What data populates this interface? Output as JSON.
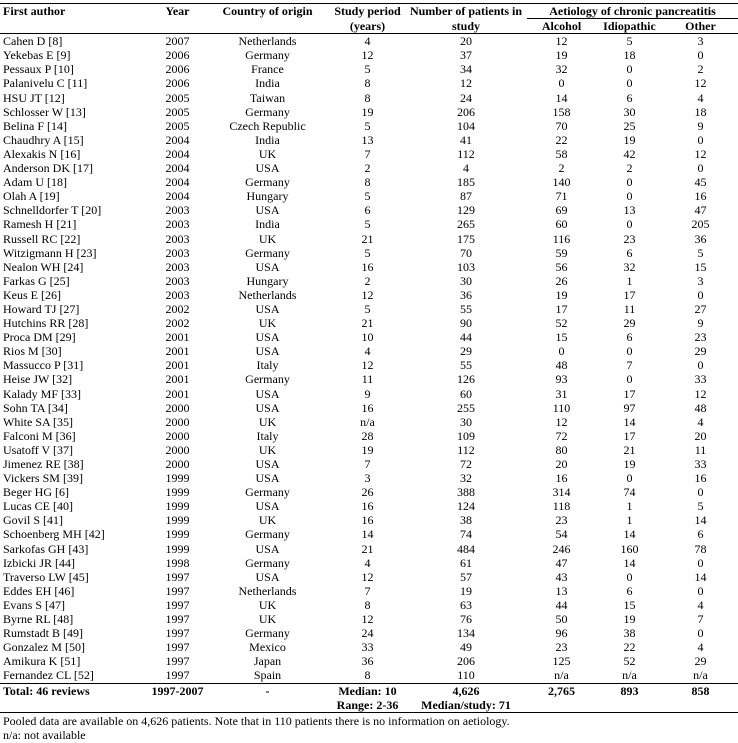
{
  "headers": {
    "author": "First author",
    "year": "Year",
    "country": "Country of origin",
    "period": "Study period",
    "period_unit": "(years)",
    "patients": "Number of patients in",
    "patients_2": "study",
    "aetiology": "Aetiology of chronic pancreatitis",
    "alcohol": "Alcohol",
    "idiopathic": "Idiopathic",
    "other": "Other"
  },
  "rows": [
    [
      "Cahen D [8]",
      "2007",
      "Netherlands",
      "4",
      "20",
      "12",
      "5",
      "3"
    ],
    [
      "Yekebas E [9]",
      "2006",
      "Germany",
      "12",
      "37",
      "19",
      "18",
      "0"
    ],
    [
      "Pessaux P [10]",
      "2006",
      "France",
      "5",
      "34",
      "32",
      "0",
      "2"
    ],
    [
      "Palanivelu C [11]",
      "2006",
      "India",
      "8",
      "12",
      "0",
      "0",
      "12"
    ],
    [
      "HSU JT [12]",
      "2005",
      "Taiwan",
      "8",
      "24",
      "14",
      "6",
      "4"
    ],
    [
      "Schlosser W [13]",
      "2005",
      "Germany",
      "19",
      "206",
      "158",
      "30",
      "18"
    ],
    [
      "Belina F [14]",
      "2005",
      "Czech Republic",
      "5",
      "104",
      "70",
      "25",
      "9"
    ],
    [
      "Chaudhry A [15]",
      "2004",
      "India",
      "13",
      "41",
      "22",
      "19",
      "0"
    ],
    [
      "Alexakis N [16]",
      "2004",
      "UK",
      "7",
      "112",
      "58",
      "42",
      "12"
    ],
    [
      "Anderson DK [17]",
      "2004",
      "USA",
      "2",
      "4",
      "2",
      "2",
      "0"
    ],
    [
      "Adam U [18]",
      "2004",
      "Germany",
      "8",
      "185",
      "140",
      "0",
      "45"
    ],
    [
      "Olah A [19]",
      "2004",
      "Hungary",
      "5",
      "87",
      "71",
      "0",
      "16"
    ],
    [
      "Schnelldorfer T [20]",
      "2003",
      "USA",
      "6",
      "129",
      "69",
      "13",
      "47"
    ],
    [
      "Ramesh H [21]",
      "2003",
      "India",
      "5",
      "265",
      "60",
      "0",
      "205"
    ],
    [
      "Russell RC [22]",
      "2003",
      "UK",
      "21",
      "175",
      "116",
      "23",
      "36"
    ],
    [
      "Witzigmann H [23]",
      "2003",
      "Germany",
      "5",
      "70",
      "59",
      "6",
      "5"
    ],
    [
      "Nealon WH [24]",
      "2003",
      "USA",
      "16",
      "103",
      "56",
      "32",
      "15"
    ],
    [
      "Farkas G [25]",
      "2003",
      "Hungary",
      "2",
      "30",
      "26",
      "1",
      "3"
    ],
    [
      "Keus E [26]",
      "2003",
      "Netherlands",
      "12",
      "36",
      "19",
      "17",
      "0"
    ],
    [
      "Howard TJ [27]",
      "2002",
      "USA",
      "5",
      "55",
      "17",
      "11",
      "27"
    ],
    [
      "Hutchins RR [28]",
      "2002",
      "UK",
      "21",
      "90",
      "52",
      "29",
      "9"
    ],
    [
      "Proca DM [29]",
      "2001",
      "USA",
      "10",
      "44",
      "15",
      "6",
      "23"
    ],
    [
      "Rios M [30]",
      "2001",
      "USA",
      "4",
      "29",
      "0",
      "0",
      "29"
    ],
    [
      "Massucco P [31]",
      "2001",
      "Italy",
      "12",
      "55",
      "48",
      "7",
      "0"
    ],
    [
      "Heise JW [32]",
      "2001",
      "Germany",
      "11",
      "126",
      "93",
      "0",
      "33"
    ],
    [
      "Kalady MF [33]",
      "2001",
      "USA",
      "9",
      "60",
      "31",
      "17",
      "12"
    ],
    [
      "Sohn TA [34]",
      "2000",
      "USA",
      "16",
      "255",
      "110",
      "97",
      "48"
    ],
    [
      "White SA [35]",
      "2000",
      "UK",
      "n/a",
      "30",
      "12",
      "14",
      "4"
    ],
    [
      "Falconi M [36]",
      "2000",
      "Italy",
      "28",
      "109",
      "72",
      "17",
      "20"
    ],
    [
      "Usatoff V [37]",
      "2000",
      "UK",
      "19",
      "112",
      "80",
      "21",
      "11"
    ],
    [
      "Jimenez RE [38]",
      "2000",
      "USA",
      "7",
      "72",
      "20",
      "19",
      "33"
    ],
    [
      "Vickers SM [39]",
      "1999",
      "USA",
      "3",
      "32",
      "16",
      "0",
      "16"
    ],
    [
      "Beger HG [6]",
      "1999",
      "Germany",
      "26",
      "388",
      "314",
      "74",
      "0"
    ],
    [
      "Lucas CE [40]",
      "1999",
      "USA",
      "16",
      "124",
      "118",
      "1",
      "5"
    ],
    [
      "Govil S [41]",
      "1999",
      "UK",
      "16",
      "38",
      "23",
      "1",
      "14"
    ],
    [
      "Schoenberg MH [42]",
      "1999",
      "Germany",
      "14",
      "74",
      "54",
      "14",
      "6"
    ],
    [
      "Sarkofas GH [43]",
      "1999",
      "USA",
      "21",
      "484",
      "246",
      "160",
      "78"
    ],
    [
      "Izbicki JR [44]",
      "1998",
      "Germany",
      "4",
      "61",
      "47",
      "14",
      "0"
    ],
    [
      "Traverso LW [45]",
      "1997",
      "USA",
      "12",
      "57",
      "43",
      "0",
      "14"
    ],
    [
      "Eddes EH [46]",
      "1997",
      "Netherlands",
      "7",
      "19",
      "13",
      "6",
      "0"
    ],
    [
      "Evans S [47]",
      "1997",
      "UK",
      "8",
      "63",
      "44",
      "15",
      "4"
    ],
    [
      "Byrne RL [48]",
      "1997",
      "UK",
      "12",
      "76",
      "50",
      "19",
      "7"
    ],
    [
      "Rumstadt B [49]",
      "1997",
      "Germany",
      "24",
      "134",
      "96",
      "38",
      "0"
    ],
    [
      "Gonzalez M [50]",
      "1997",
      "Mexico",
      "33",
      "49",
      "23",
      "22",
      "4"
    ],
    [
      "Amikura K [51]",
      "1997",
      "Japan",
      "36",
      "206",
      "125",
      "52",
      "29"
    ],
    [
      "Fernandez CL [52]",
      "1997",
      "Spain",
      "8",
      "110",
      "n/a",
      "n/a",
      "n/a"
    ]
  ],
  "total": {
    "author": "Total: 46 reviews",
    "year": "1997-2007",
    "country": "-",
    "period": "Median: 10",
    "patients": "4,626",
    "alcohol": "2,765",
    "idiopathic": "893",
    "other": "858",
    "period_range": "Range: 2-36",
    "patients_median": "Median/study: 71"
  },
  "notes": {
    "pooled": "Pooled data are available on 4,626 patients. Note that in 110 patients there is no information on aetiology.",
    "na": "n/a: not available"
  }
}
